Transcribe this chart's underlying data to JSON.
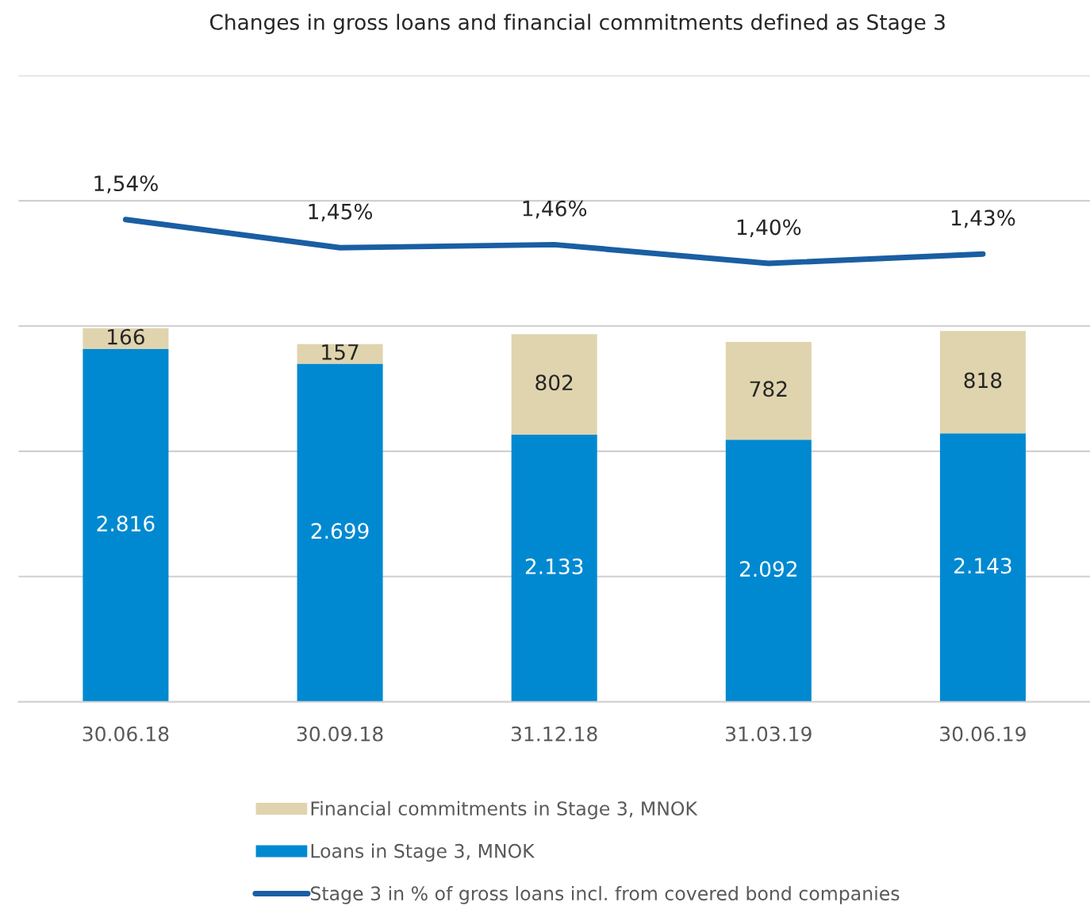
{
  "chart_data": {
    "type": "bar",
    "title": "Changes in gross loans and financial commitments defined as Stage 3",
    "categories": [
      "30.06.18",
      "30.09.18",
      "31.12.18",
      "31.03.19",
      "30.06.19"
    ],
    "stacked": true,
    "ylim": [
      0,
      5000
    ],
    "yticks": [
      {
        "value": 0,
        "label": null
      },
      {
        "value": 1000,
        "label": null
      },
      {
        "value": 2000,
        "label": null
      },
      {
        "value": 3000,
        "label": null
      },
      {
        "value": 4000,
        "label": null
      },
      {
        "value": 5000,
        "label": null
      }
    ],
    "y2lim": [
      0,
      2
    ],
    "tick_labels": "x",
    "grid": "y",
    "legend": "bottom",
    "series": [
      {
        "name": "Loans in Stage 3, MNOK",
        "color": "#0089d1",
        "values": [
          2816,
          2699,
          2133,
          2092,
          2143
        ],
        "value_labels": [
          "2.816",
          "2.699",
          "2.133",
          "2.092",
          "2.143"
        ]
      },
      {
        "name": "Financial commitments in Stage 3, MNOK",
        "color": "#e0d4ae",
        "values": [
          166,
          157,
          802,
          782,
          818
        ],
        "value_labels": [
          "166",
          "157",
          "802",
          "782",
          "818"
        ]
      },
      {
        "name": "Stage 3 in % of gross loans incl. from covered bond companies",
        "type": "line",
        "axis": "y2",
        "color": "#1a5ea3",
        "values": [
          1.54,
          1.45,
          1.46,
          1.4,
          1.43
        ],
        "value_labels": [
          "1,54%",
          "1,45%",
          "1,46%",
          "1,40%",
          "1,43%"
        ]
      }
    ]
  }
}
